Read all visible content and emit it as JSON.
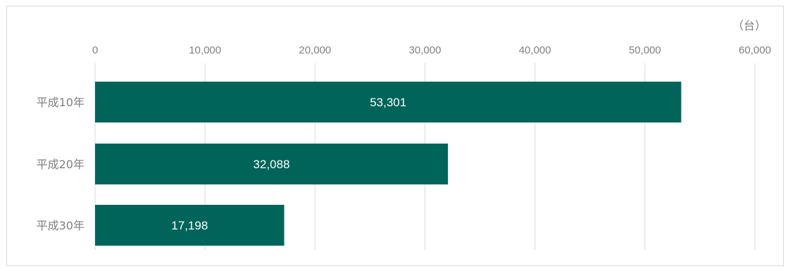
{
  "chart_data": {
    "type": "bar",
    "orientation": "horizontal",
    "categories": [
      "平成10年",
      "平成20年",
      "平成30年"
    ],
    "values": [
      53301,
      32088,
      17198
    ],
    "value_labels": [
      "53,301",
      "32,088",
      "17,198"
    ],
    "unit_label": "（台）",
    "xlim": [
      0,
      60000
    ],
    "ticks": [
      0,
      10000,
      20000,
      30000,
      40000,
      50000,
      60000
    ],
    "tick_labels": [
      "0",
      "10,000",
      "20,000",
      "30,000",
      "40,000",
      "50,000",
      "60,000"
    ],
    "axis_position": "top",
    "grid": true,
    "bar_color": "#00645A",
    "legend": "none"
  }
}
